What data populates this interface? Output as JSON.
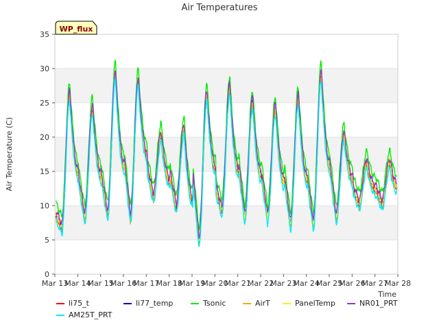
{
  "chart_data": {
    "type": "line",
    "title": "Air Temperatures",
    "xlabel": "Time",
    "ylabel": "Air Temperature (C)",
    "ylim": [
      0,
      35
    ],
    "yticks": [
      0,
      5,
      10,
      15,
      20,
      25,
      30,
      35
    ],
    "xlim": [
      "Mar 13",
      "Mar 28"
    ],
    "xticks": [
      "Mar 13",
      "Mar 14",
      "Mar 15",
      "Mar 16",
      "Mar 17",
      "Mar 18",
      "Mar 19",
      "Mar 20",
      "Mar 21",
      "Mar 22",
      "Mar 23",
      "Mar 24",
      "Mar 25",
      "Mar 26",
      "Mar 27",
      "Mar 28"
    ],
    "grid": "horizontal alternating bands",
    "badge": "WP_flux",
    "days": [
      "Mar 13",
      "Mar 14",
      "Mar 15",
      "Mar 16",
      "Mar 17",
      "Mar 18",
      "Mar 19",
      "Mar 20",
      "Mar 21",
      "Mar 22",
      "Mar 23",
      "Mar 24",
      "Mar 25",
      "Mar 26",
      "Mar 27"
    ],
    "daily_min": [
      6.5,
      8.0,
      8.5,
      8.0,
      11.0,
      9.5,
      4.5,
      9.0,
      8.0,
      8.0,
      7.0,
      7.0,
      8.0,
      10.0,
      10.0
    ],
    "daily_max": [
      26.0,
      24.0,
      29.0,
      28.0,
      20.0,
      21.0,
      26.0,
      27.0,
      25.0,
      24.0,
      25.5,
      29.0,
      20.0,
      16.0,
      16.0
    ],
    "start_value": 10.0,
    "series": [
      {
        "name": "li75_t",
        "color": "#ff0000",
        "offset": 0.3
      },
      {
        "name": "li77_temp",
        "color": "#0000cc",
        "offset": 0.0
      },
      {
        "name": "Tsonic",
        "color": "#00ee00",
        "offset": 2.0
      },
      {
        "name": "AirT",
        "color": "#ffa500",
        "offset": -0.2
      },
      {
        "name": "PanelTemp",
        "color": "#ffee00",
        "offset": 0.5
      },
      {
        "name": "NR01_PRT",
        "color": "#9933cc",
        "offset": 0.9
      },
      {
        "name": "AM25T_PRT",
        "color": "#00eeff",
        "offset": -0.6
      }
    ]
  }
}
